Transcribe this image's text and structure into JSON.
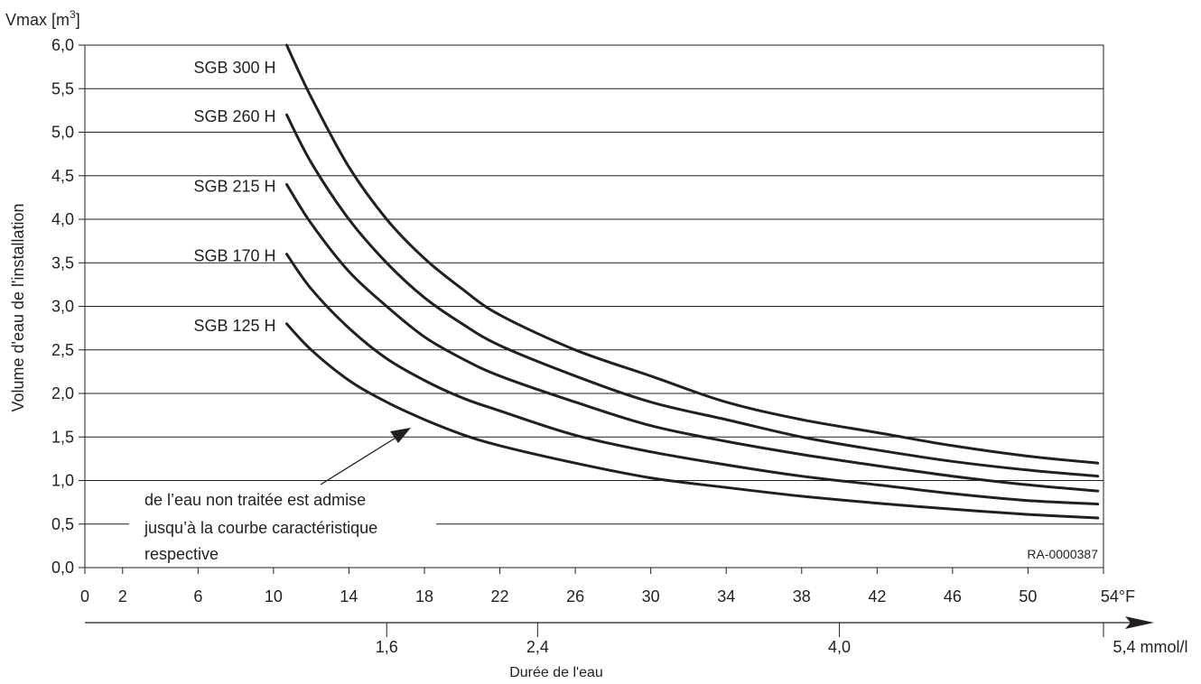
{
  "chart_data": {
    "type": "line",
    "ylabel_top": "Vmax [m",
    "ylabel_top_sup": "3",
    "ylabel_top_close": "]",
    "ylabel": "Volume d'eau de l'installation",
    "x_unit": "°F",
    "x2_label": "Durée de l'eau",
    "x2_unit": "mmol/l",
    "reference": "RA-0000387",
    "ylim": [
      0,
      6.0
    ],
    "xlim": [
      0,
      54
    ],
    "grid": "horizontal",
    "y_ticks": [
      "0,0",
      "0,5",
      "1,0",
      "1,5",
      "2,0",
      "2,5",
      "3,0",
      "3,5",
      "4,0",
      "4,5",
      "5,0",
      "5,5",
      "6,0"
    ],
    "x_ticks": [
      "0",
      "2",
      "6",
      "10",
      "14",
      "18",
      "22",
      "26",
      "30",
      "34",
      "38",
      "42",
      "46",
      "50",
      "54"
    ],
    "x2_ticks": [
      {
        "label": "1,6",
        "value": 1.6
      },
      {
        "label": "2,4",
        "value": 2.4
      },
      {
        "label": "4,0",
        "value": 4.0
      },
      {
        "label": "5,4",
        "value": 5.4
      }
    ],
    "series": [
      {
        "name": "SGB 300 H",
        "x": [
          10.7,
          12,
          14,
          16,
          18,
          20,
          22,
          26,
          30,
          34,
          38,
          42,
          46,
          50,
          53.7
        ],
        "y": [
          6.0,
          5.4,
          4.6,
          4.0,
          3.55,
          3.2,
          2.9,
          2.5,
          2.2,
          1.9,
          1.7,
          1.55,
          1.4,
          1.28,
          1.2
        ]
      },
      {
        "name": "SGB 260 H",
        "x": [
          10.7,
          12,
          14,
          16,
          18,
          20,
          22,
          26,
          30,
          34,
          38,
          42,
          46,
          50,
          53.7
        ],
        "y": [
          5.2,
          4.65,
          4.0,
          3.5,
          3.1,
          2.8,
          2.55,
          2.2,
          1.9,
          1.7,
          1.5,
          1.35,
          1.22,
          1.12,
          1.05
        ]
      },
      {
        "name": "SGB 215 H",
        "x": [
          10.7,
          12,
          14,
          16,
          18,
          20,
          22,
          26,
          30,
          34,
          38,
          42,
          46,
          50,
          53.7
        ],
        "y": [
          4.4,
          3.95,
          3.4,
          3.0,
          2.65,
          2.4,
          2.2,
          1.9,
          1.63,
          1.45,
          1.3,
          1.17,
          1.05,
          0.95,
          0.88
        ]
      },
      {
        "name": "SGB 170 H",
        "x": [
          10.7,
          12,
          14,
          16,
          18,
          20,
          22,
          26,
          30,
          34,
          38,
          42,
          46,
          50,
          53.7
        ],
        "y": [
          3.6,
          3.2,
          2.75,
          2.4,
          2.15,
          1.95,
          1.8,
          1.52,
          1.33,
          1.18,
          1.05,
          0.95,
          0.85,
          0.77,
          0.73
        ]
      },
      {
        "name": "SGB 125 H",
        "x": [
          10.7,
          12,
          14,
          16,
          18,
          20,
          22,
          26,
          30,
          34,
          38,
          42,
          46,
          50,
          53.7
        ],
        "y": [
          2.8,
          2.5,
          2.15,
          1.9,
          1.7,
          1.53,
          1.4,
          1.2,
          1.03,
          0.92,
          0.82,
          0.74,
          0.67,
          0.61,
          0.57
        ]
      }
    ],
    "annotation": {
      "lines": [
        "de l’eau non traitée est admise",
        "jusqu’à la courbe caractéristique",
        "respective"
      ]
    }
  }
}
